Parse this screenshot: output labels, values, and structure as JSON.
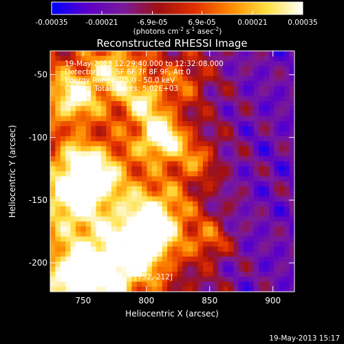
{
  "chart_data": {
    "type": "heatmap",
    "title": "Reconstructed RHESSI Image",
    "xlabel": "Heliocentric X (arcsec)",
    "ylabel": "Heliocentric Y (arcsec)",
    "xlim": [
      724,
      917
    ],
    "ylim": [
      -223,
      -31
    ],
    "xticks": [
      750,
      800,
      850,
      900
    ],
    "yticks": [
      -50,
      -100,
      -150,
      -200
    ],
    "grid": false,
    "colorbar": {
      "position": "top",
      "range": [
        -0.00035,
        0.00035
      ],
      "ticks": [
        -0.00035,
        -0.00021,
        -6.9e-05,
        6.9e-05,
        0.00021,
        0.00035
      ],
      "tick_labels": [
        "-0.00035",
        "-0.00021",
        "-6.9e-05",
        "6.9e-05",
        "0.00021",
        "0.00035"
      ],
      "units": "(photons cm",
      "units_sup1": "-2",
      "units_mid": " s",
      "units_sup2": "-1",
      "units_mid2": " asec",
      "units_sup3": "-2",
      "units_end": ")",
      "colors": [
        "#0000ff",
        "#5c00c8",
        "#7a1a9a",
        "#a01010",
        "#e23000",
        "#ff8a00",
        "#ffe040",
        "#ffffff"
      ]
    },
    "annotations": {
      "time_range": "19-May-2013 12:29:40.000 to 12:32:08.000",
      "detectors": "Detectors: 3F 5F 6F 7F 8F 9F, Att 0",
      "energy": "Energy Range: 25.0 - 50.0 keV",
      "clean": "Clean    Total counts: 5.02E+03",
      "peak": "Location of Peak = [752,-212]"
    },
    "peak": [
      752,
      -212
    ],
    "blobs": [
      {
        "x": 752,
        "y": -212,
        "amp": 1.0,
        "r": 22
      },
      {
        "x": 790,
        "y": -190,
        "amp": 0.75,
        "r": 18
      },
      {
        "x": 808,
        "y": -165,
        "amp": 0.75,
        "r": 20
      },
      {
        "x": 742,
        "y": -148,
        "amp": 0.8,
        "r": 18
      },
      {
        "x": 764,
        "y": -128,
        "amp": 0.55,
        "r": 15
      },
      {
        "x": 812,
        "y": -100,
        "amp": 0.95,
        "r": 12
      },
      {
        "x": 798,
        "y": -72,
        "amp": 0.55,
        "r": 12
      },
      {
        "x": 742,
        "y": -68,
        "amp": 0.7,
        "r": 14
      },
      {
        "x": 775,
        "y": -48,
        "amp": 0.55,
        "r": 14
      },
      {
        "x": 745,
        "y": -118,
        "amp": 0.5,
        "r": 10
      },
      {
        "x": 838,
        "y": -118,
        "amp": 0.45,
        "r": 12
      },
      {
        "x": 850,
        "y": -182,
        "amp": 0.45,
        "r": 10
      },
      {
        "x": 830,
        "y": -55,
        "amp": 0.35,
        "r": 12
      }
    ],
    "background": {
      "east_level": -0.55,
      "west_level": 0.05
    }
  },
  "footer": {
    "timestamp": "19-May-2013 15:17"
  }
}
